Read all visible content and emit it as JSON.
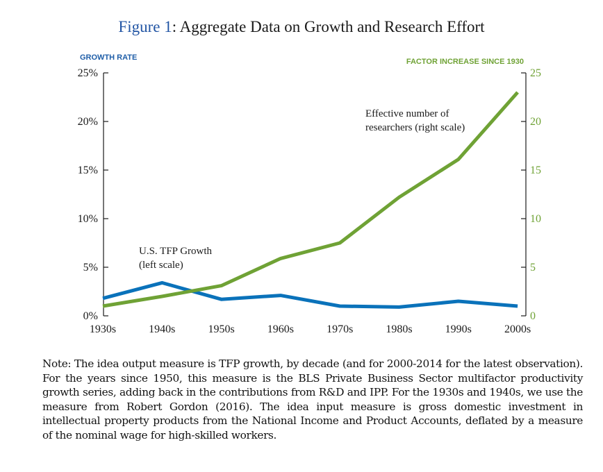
{
  "figure": {
    "title_num": "Figure 1",
    "title_text": ": Aggregate Data on Growth and Research Effort"
  },
  "colors": {
    "tfp": "#0a72ba",
    "researchers": "#6fa235",
    "axis": "#1a1a1a",
    "left_label": "#1f5ea8",
    "right_label": "#6fa235"
  },
  "chart_data": {
    "type": "line",
    "categories": [
      "1930s",
      "1940s",
      "1950s",
      "1960s",
      "1970s",
      "1980s",
      "1990s",
      "2000s"
    ],
    "left_axis": {
      "label": "GROWTH RATE",
      "ylim": [
        0,
        25
      ],
      "ticks": [
        0,
        5,
        10,
        15,
        20,
        25
      ],
      "tick_labels": [
        "0%",
        "5%",
        "10%",
        "15%",
        "20%",
        "25%"
      ]
    },
    "right_axis": {
      "label": "FACTOR INCREASE SINCE 1930",
      "ylim": [
        0,
        25
      ],
      "ticks": [
        0,
        5,
        10,
        15,
        20,
        25
      ],
      "tick_labels": [
        "0",
        "5",
        "10",
        "15",
        "20",
        "25"
      ]
    },
    "series": [
      {
        "axis": "left",
        "annotation": [
          "U.S. TFP Growth",
          "(left scale)"
        ],
        "values": [
          1.8,
          3.4,
          1.7,
          2.1,
          1.0,
          0.9,
          1.5,
          1.0
        ]
      },
      {
        "axis": "right",
        "annotation": [
          "Effective number of",
          "researchers (right scale)"
        ],
        "values": [
          1.0,
          2.0,
          3.1,
          5.9,
          7.5,
          12.2,
          16.1,
          23.0
        ]
      }
    ]
  },
  "note": "Note: The idea output measure is TFP growth, by decade (and for 2000-2014 for the latest observation). For the years since 1950, this measure is the BLS Private Business Sector multifactor productivity growth series, adding back in the contributions from R&D and IPP. For the 1930s and 1940s, we use the measure from Robert Gordon (2016). The idea input measure is gross domestic investment in intellectual property products from the National Income and Product Accounts, deflated by a measure of the nominal wage for high-skilled workers."
}
